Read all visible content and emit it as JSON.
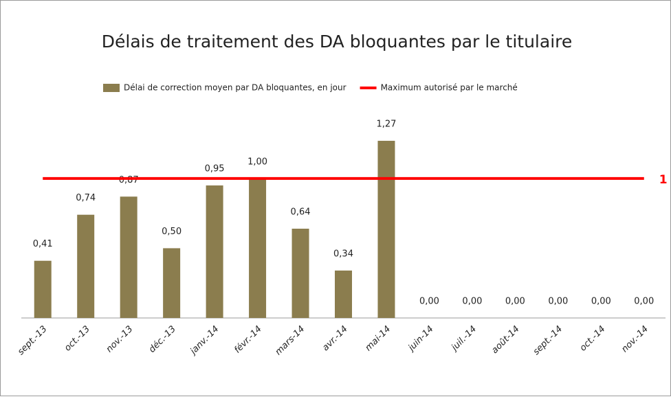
{
  "chart_data": {
    "type": "bar",
    "title": "Délais de traitement des DA bloquantes par le titulaire",
    "categories": [
      "sept.-13",
      "oct.-13",
      "nov.-13",
      "déc.-13",
      "janv.-14",
      "févr.-14",
      "mars-14",
      "avr.-14",
      "mai-14",
      "juin-14",
      "juil.-14",
      "août-14",
      "sept.-14",
      "oct.-14",
      "nov.-14"
    ],
    "series": [
      {
        "name": "Délai de correction moyen par DA bloquantes, en jour",
        "type": "bar",
        "color": "#8b7d4e",
        "values": [
          0.41,
          0.74,
          0.87,
          0.5,
          0.95,
          1.0,
          0.64,
          0.34,
          1.27,
          0,
          0,
          0,
          0,
          0,
          0
        ],
        "value_labels": [
          "0,41",
          "0,74",
          "0,87",
          "0,50",
          "0,95",
          "1,00",
          "0,64",
          "0,34",
          "1,27",
          "0,00",
          "0,00",
          "0,00",
          "0,00",
          "0,00",
          "0,00"
        ]
      },
      {
        "name": "Maximum autorisé par le marché",
        "type": "line",
        "color": "#ff0000",
        "values": [
          1,
          1,
          1,
          1,
          1,
          1,
          1,
          1,
          1,
          1,
          1,
          1,
          1,
          1,
          1
        ]
      }
    ],
    "ylim": [
      0,
      1.6
    ]
  }
}
